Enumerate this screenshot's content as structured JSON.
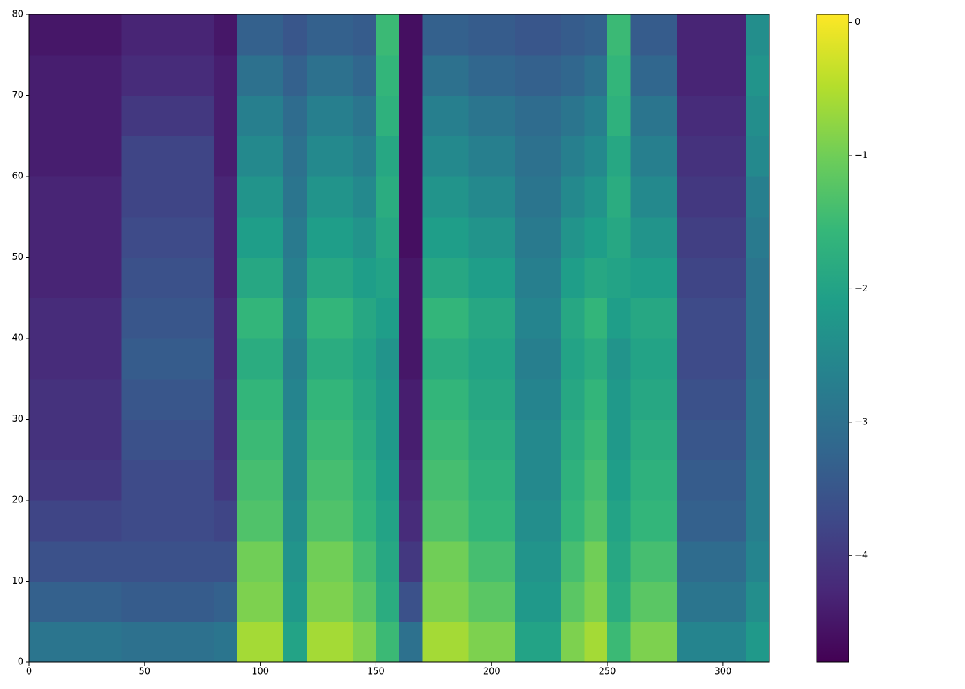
{
  "chart_data": {
    "type": "heatmap",
    "xlim": [
      0,
      320
    ],
    "ylim": [
      0,
      80
    ],
    "xticks": [
      0,
      50,
      100,
      150,
      200,
      250,
      300
    ],
    "yticks": [
      0,
      10,
      20,
      30,
      40,
      50,
      60,
      70,
      80
    ],
    "colormap": "viridis",
    "clim": [
      -4.8,
      0.06
    ],
    "colorbar_ticks": [
      0,
      {
        "value": -1,
        "label": "−1"
      },
      {
        "value": -2,
        "label": "−2"
      },
      {
        "value": -3,
        "label": "−3"
      },
      {
        "value": -4,
        "label": "−4"
      }
    ],
    "z": [
      [
        -2.9,
        -3.3,
        -3.6,
        -3.8,
        -4.0,
        -4.1,
        -4.1,
        -4.2,
        -4.2,
        -4.3,
        -4.3,
        -4.3,
        -4.4,
        -4.4,
        -4.4,
        -4.5
      ],
      [
        -2.9,
        -3.3,
        -3.6,
        -3.8,
        -4.0,
        -4.1,
        -4.1,
        -4.2,
        -4.2,
        -4.3,
        -4.3,
        -4.3,
        -4.4,
        -4.4,
        -4.4,
        -4.5
      ],
      [
        -2.9,
        -3.3,
        -3.6,
        -3.8,
        -4.0,
        -4.1,
        -4.1,
        -4.2,
        -4.2,
        -4.3,
        -4.3,
        -4.3,
        -4.4,
        -4.4,
        -4.4,
        -4.5
      ],
      [
        -2.9,
        -3.3,
        -3.6,
        -3.8,
        -4.0,
        -4.1,
        -4.1,
        -4.2,
        -4.2,
        -4.3,
        -4.3,
        -4.3,
        -4.4,
        -4.4,
        -4.4,
        -4.5
      ],
      [
        -3.0,
        -3.4,
        -3.6,
        -3.7,
        -3.7,
        -3.6,
        -3.5,
        -3.4,
        -3.5,
        -3.6,
        -3.7,
        -3.8,
        -3.8,
        -4.0,
        -4.2,
        -4.3
      ],
      [
        -3.0,
        -3.4,
        -3.6,
        -3.7,
        -3.7,
        -3.6,
        -3.5,
        -3.4,
        -3.5,
        -3.6,
        -3.7,
        -3.8,
        -3.8,
        -4.0,
        -4.2,
        -4.3
      ],
      [
        -3.0,
        -3.4,
        -3.6,
        -3.7,
        -3.7,
        -3.6,
        -3.5,
        -3.4,
        -3.5,
        -3.6,
        -3.7,
        -3.8,
        -3.8,
        -4.0,
        -4.2,
        -4.3
      ],
      [
        -3.0,
        -3.4,
        -3.6,
        -3.7,
        -3.7,
        -3.6,
        -3.5,
        -3.4,
        -3.5,
        -3.6,
        -3.7,
        -3.8,
        -3.8,
        -4.0,
        -4.2,
        -4.3
      ],
      [
        -2.9,
        -3.3,
        -3.6,
        -3.8,
        -4.0,
        -4.1,
        -4.1,
        -4.2,
        -4.2,
        -4.3,
        -4.3,
        -4.3,
        -4.4,
        -4.4,
        -4.4,
        -4.5
      ],
      [
        -0.6,
        -0.9,
        -1.0,
        -1.3,
        -1.4,
        -1.5,
        -1.6,
        -1.8,
        -1.6,
        -1.9,
        -2.1,
        -2.3,
        -2.5,
        -2.7,
        -3.0,
        -3.3
      ],
      [
        -0.6,
        -0.9,
        -1.0,
        -1.3,
        -1.4,
        -1.5,
        -1.6,
        -1.8,
        -1.6,
        -1.9,
        -2.1,
        -2.3,
        -2.5,
        -2.7,
        -3.0,
        -3.3
      ],
      [
        -2.0,
        -2.2,
        -2.3,
        -2.4,
        -2.5,
        -2.5,
        -2.6,
        -2.7,
        -2.6,
        -2.7,
        -2.8,
        -2.9,
        -3.0,
        -3.1,
        -3.3,
        -3.5
      ],
      [
        -0.6,
        -0.9,
        -1.0,
        -1.3,
        -1.4,
        -1.5,
        -1.6,
        -1.8,
        -1.6,
        -1.9,
        -2.1,
        -2.3,
        -2.5,
        -2.7,
        -3.0,
        -3.3
      ],
      [
        -0.6,
        -0.9,
        -1.0,
        -1.3,
        -1.4,
        -1.5,
        -1.6,
        -1.8,
        -1.6,
        -1.9,
        -2.1,
        -2.3,
        -2.5,
        -2.7,
        -3.0,
        -3.3
      ],
      [
        -0.9,
        -1.2,
        -1.4,
        -1.6,
        -1.7,
        -1.8,
        -1.9,
        -2.0,
        -1.9,
        -2.1,
        -2.3,
        -2.5,
        -2.7,
        -2.9,
        -3.2,
        -3.4
      ],
      [
        -1.5,
        -1.8,
        -1.9,
        -2.0,
        -2.1,
        -2.2,
        -2.2,
        -2.3,
        -2.1,
        -2.0,
        -1.9,
        -1.8,
        -1.9,
        -1.7,
        -1.6,
        -1.5
      ],
      [
        -3.0,
        -3.6,
        -4.0,
        -4.2,
        -4.3,
        -4.4,
        -4.4,
        -4.5,
        -4.5,
        -4.5,
        -4.6,
        -4.6,
        -4.6,
        -4.6,
        -4.6,
        -4.6
      ],
      [
        -0.6,
        -0.9,
        -1.0,
        -1.3,
        -1.4,
        -1.5,
        -1.6,
        -1.8,
        -1.6,
        -1.9,
        -2.1,
        -2.3,
        -2.5,
        -2.7,
        -3.0,
        -3.3
      ],
      [
        -0.6,
        -0.9,
        -1.0,
        -1.3,
        -1.4,
        -1.5,
        -1.6,
        -1.8,
        -1.6,
        -1.9,
        -2.1,
        -2.3,
        -2.5,
        -2.7,
        -3.0,
        -3.3
      ],
      [
        -0.9,
        -1.2,
        -1.4,
        -1.6,
        -1.7,
        -1.8,
        -1.9,
        -2.0,
        -1.9,
        -2.1,
        -2.3,
        -2.5,
        -2.7,
        -2.9,
        -3.2,
        -3.4
      ],
      [
        -0.9,
        -1.2,
        -1.4,
        -1.6,
        -1.7,
        -1.8,
        -1.9,
        -2.0,
        -1.9,
        -2.1,
        -2.3,
        -2.5,
        -2.7,
        -2.9,
        -3.2,
        -3.4
      ],
      [
        -2.0,
        -2.2,
        -2.3,
        -2.4,
        -2.5,
        -2.5,
        -2.6,
        -2.7,
        -2.6,
        -2.7,
        -2.8,
        -2.9,
        -3.0,
        -3.1,
        -3.3,
        -3.5
      ],
      [
        -2.0,
        -2.2,
        -2.3,
        -2.4,
        -2.5,
        -2.5,
        -2.6,
        -2.7,
        -2.6,
        -2.7,
        -2.8,
        -2.9,
        -3.0,
        -3.1,
        -3.3,
        -3.5
      ],
      [
        -0.9,
        -1.2,
        -1.4,
        -1.6,
        -1.7,
        -1.8,
        -1.9,
        -2.0,
        -1.9,
        -2.1,
        -2.3,
        -2.5,
        -2.7,
        -2.9,
        -3.2,
        -3.4
      ],
      [
        -0.6,
        -0.9,
        -1.0,
        -1.3,
        -1.4,
        -1.5,
        -1.6,
        -1.8,
        -1.6,
        -1.9,
        -2.1,
        -2.3,
        -2.5,
        -2.7,
        -3.0,
        -3.3
      ],
      [
        -1.5,
        -1.8,
        -1.9,
        -2.0,
        -2.1,
        -2.2,
        -2.2,
        -2.3,
        -2.1,
        -2.0,
        -1.9,
        -1.8,
        -1.9,
        -1.7,
        -1.6,
        -1.5
      ],
      [
        -0.9,
        -1.2,
        -1.4,
        -1.6,
        -1.7,
        -1.8,
        -1.9,
        -2.0,
        -1.9,
        -2.1,
        -2.3,
        -2.5,
        -2.7,
        -2.9,
        -3.2,
        -3.4
      ],
      [
        -0.9,
        -1.2,
        -1.4,
        -1.6,
        -1.7,
        -1.8,
        -1.9,
        -2.0,
        -1.9,
        -2.1,
        -2.3,
        -2.5,
        -2.7,
        -2.9,
        -3.2,
        -3.4
      ],
      [
        -2.6,
        -2.9,
        -3.1,
        -3.3,
        -3.4,
        -3.5,
        -3.6,
        -3.7,
        -3.7,
        -3.8,
        -3.9,
        -4.0,
        -4.1,
        -4.2,
        -4.3,
        -4.3
      ],
      [
        -2.6,
        -2.9,
        -3.1,
        -3.3,
        -3.4,
        -3.5,
        -3.6,
        -3.7,
        -3.7,
        -3.8,
        -3.9,
        -4.0,
        -4.1,
        -4.2,
        -4.3,
        -4.3
      ],
      [
        -2.6,
        -2.9,
        -3.1,
        -3.3,
        -3.4,
        -3.5,
        -3.6,
        -3.7,
        -3.7,
        -3.8,
        -3.9,
        -4.0,
        -4.1,
        -4.2,
        -4.3,
        -4.3
      ],
      [
        -2.2,
        -2.4,
        -2.6,
        -2.7,
        -2.7,
        -2.8,
        -2.8,
        -2.9,
        -2.9,
        -2.9,
        -2.8,
        -2.7,
        -2.5,
        -2.4,
        -2.3,
        -2.4
      ]
    ]
  }
}
